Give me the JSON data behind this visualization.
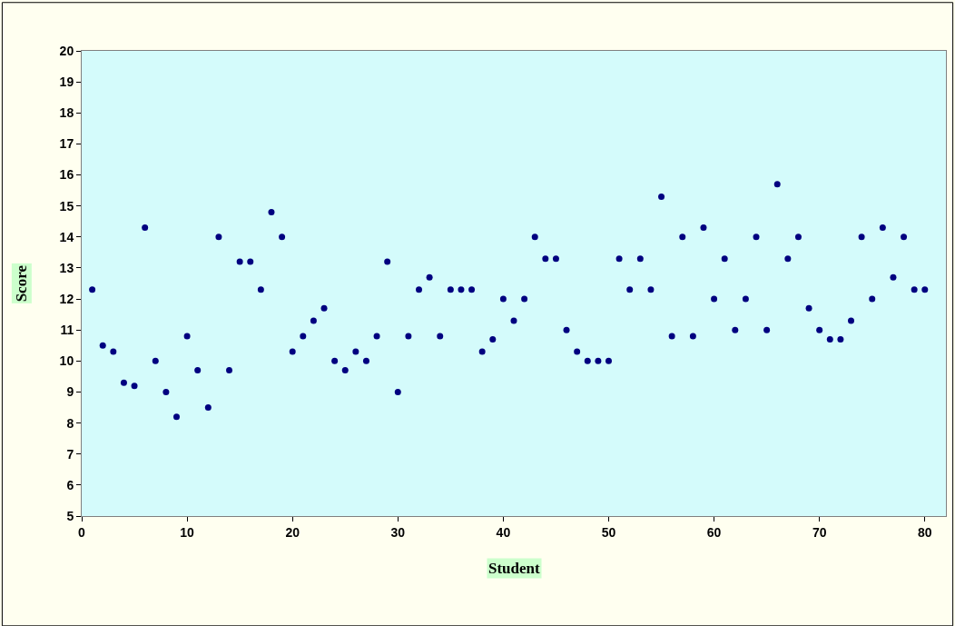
{
  "chart_data": {
    "type": "scatter",
    "xlabel": "Student",
    "ylabel": "Score",
    "x": [
      1,
      2,
      3,
      4,
      5,
      6,
      7,
      8,
      9,
      10,
      11,
      12,
      13,
      14,
      15,
      16,
      17,
      18,
      19,
      20,
      21,
      22,
      23,
      24,
      25,
      26,
      27,
      28,
      29,
      30,
      31,
      32,
      33,
      34,
      35,
      36,
      37,
      38,
      39,
      40,
      41,
      42,
      43,
      44,
      45,
      46,
      47,
      48,
      49,
      50,
      51,
      52,
      53,
      54,
      55,
      56,
      57,
      58,
      59,
      60,
      61,
      62,
      63,
      64,
      65,
      66,
      67,
      68,
      69,
      70,
      71,
      72,
      73,
      74,
      75,
      76,
      77,
      78,
      79,
      80
    ],
    "series": [
      {
        "color": "#000080",
        "values": [
          12.3,
          10.5,
          10.3,
          9.3,
          9.2,
          14.3,
          10.0,
          9.0,
          8.2,
          10.8,
          9.7,
          8.5,
          14.0,
          9.7,
          13.2,
          13.2,
          12.3,
          14.8,
          14.0,
          10.3,
          10.8,
          11.3,
          11.7,
          10.0,
          9.7,
          10.3,
          10.0,
          10.8,
          13.2,
          9.0,
          10.8,
          12.3,
          12.7,
          10.8,
          12.3,
          12.3,
          12.3,
          10.3,
          10.7,
          12.0,
          11.3,
          12.0,
          14.0,
          13.3,
          13.3,
          11.0,
          10.3,
          10.0,
          10.0,
          10.0,
          13.3,
          12.3,
          13.3,
          12.3,
          15.3,
          10.8,
          14.0,
          10.8,
          14.3,
          12.0,
          13.3,
          11.0,
          12.0,
          14.0,
          11.0,
          15.7,
          13.3,
          14.0,
          11.7,
          11.0,
          10.7,
          10.7,
          11.3,
          14.0,
          12.0,
          14.3,
          12.7,
          14.0,
          12.3,
          12.3
        ]
      }
    ],
    "xlim": [
      0,
      82
    ],
    "xticks": [
      0,
      10,
      20,
      30,
      40,
      50,
      60,
      70,
      80
    ],
    "ylim": [
      5,
      20
    ],
    "yticks": [
      5,
      6,
      7,
      8,
      9,
      10,
      11,
      12,
      13,
      14,
      15,
      16,
      17,
      18,
      19,
      20
    ],
    "marker": "circle",
    "grid": false
  }
}
